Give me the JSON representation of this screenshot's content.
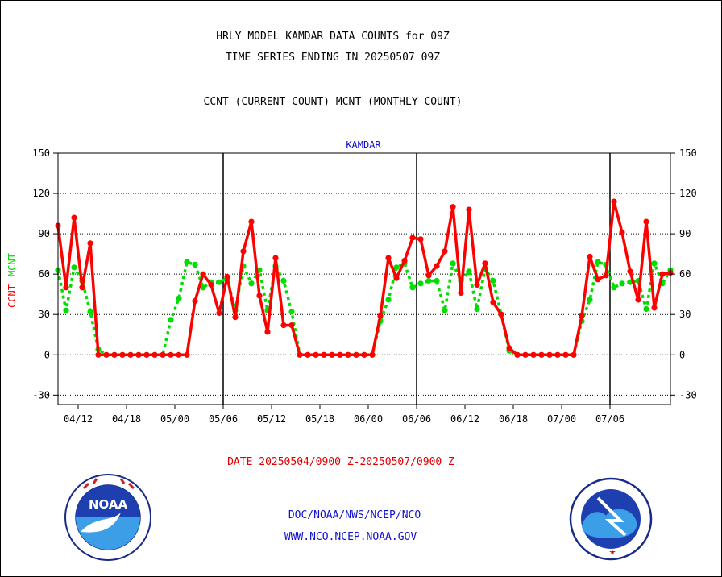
{
  "header": {
    "title_line1": "HRLY MODEL KAMDAR DATA COUNTS for 09Z",
    "title_line2": "TIME SERIES ENDING IN 20250507 09Z",
    "subtitle": "CCNT (CURRENT COUNT) MCNT (MONTHLY COUNT)"
  },
  "footer": {
    "date_range": "DATE 20250504/0900 Z-20250507/0900 Z",
    "org_line": "DOC/NOAA/NWS/NCEP/NCO",
    "url_line": "WWW.NCO.NCEP.NOAA.GOV"
  },
  "logos": {
    "left": {
      "name": "noaa-logo",
      "text": "NOAA"
    },
    "right": {
      "name": "nws-logo"
    }
  },
  "colors": {
    "ccnt": "#ff0000",
    "mcnt": "#00dd00",
    "plot_title": "#1010d0",
    "date_text": "#e00000"
  },
  "chart_data": {
    "type": "line",
    "plot_title": "KAMDAR",
    "ylabel_left": [
      "CCNT",
      "MCNT"
    ],
    "ylim": [
      -37,
      150
    ],
    "yticks": [
      -30,
      0,
      30,
      60,
      90,
      120,
      150
    ],
    "ytick_labels": [
      "-30",
      "0",
      "30",
      "60",
      "90",
      "120",
      "150"
    ],
    "grid": "horizontal dotted",
    "xtick_labels": [
      "04/12",
      "04/18",
      "05/00",
      "05/06",
      "05/12",
      "05/18",
      "06/00",
      "06/06",
      "06/12",
      "06/18",
      "07/00",
      "07/06"
    ],
    "day_boundaries": [
      "05/06",
      "06/06",
      "07/06"
    ],
    "series": [
      {
        "name": "CCNT",
        "color": "#ff0000",
        "values": [
          96,
          50,
          102,
          50,
          83,
          0,
          0,
          0,
          0,
          0,
          0,
          0,
          0,
          0,
          0,
          0,
          0,
          40,
          60,
          52,
          31,
          58,
          28,
          77,
          99,
          44,
          17,
          72,
          22,
          22,
          0,
          0,
          0,
          0,
          0,
          0,
          0,
          0,
          0,
          0,
          29,
          72,
          57,
          70,
          87,
          86,
          59,
          66,
          77,
          110,
          46,
          108,
          52,
          68,
          39,
          30,
          5,
          0,
          0,
          0,
          0,
          0,
          0,
          0,
          0,
          29,
          73,
          56,
          59,
          114,
          91,
          62,
          41,
          99,
          35,
          60,
          61
        ]
      },
      {
        "name": "MCNT",
        "color": "#00dd00",
        "values": [
          63,
          33,
          65,
          55,
          32,
          4,
          0,
          0,
          0,
          0,
          0,
          0,
          0,
          0,
          26,
          42,
          69,
          67,
          50,
          54,
          54,
          57,
          33,
          66,
          53,
          63,
          33,
          66,
          55,
          32,
          0,
          0,
          0,
          0,
          0,
          0,
          0,
          0,
          0,
          0,
          25,
          41,
          65,
          68,
          50,
          53,
          55,
          55,
          33,
          68,
          55,
          62,
          34,
          64,
          55,
          30,
          3,
          0,
          0,
          0,
          0,
          0,
          0,
          0,
          0,
          25,
          41,
          69,
          67,
          50,
          53,
          54,
          55,
          34,
          68,
          53,
          63
        ]
      }
    ]
  }
}
